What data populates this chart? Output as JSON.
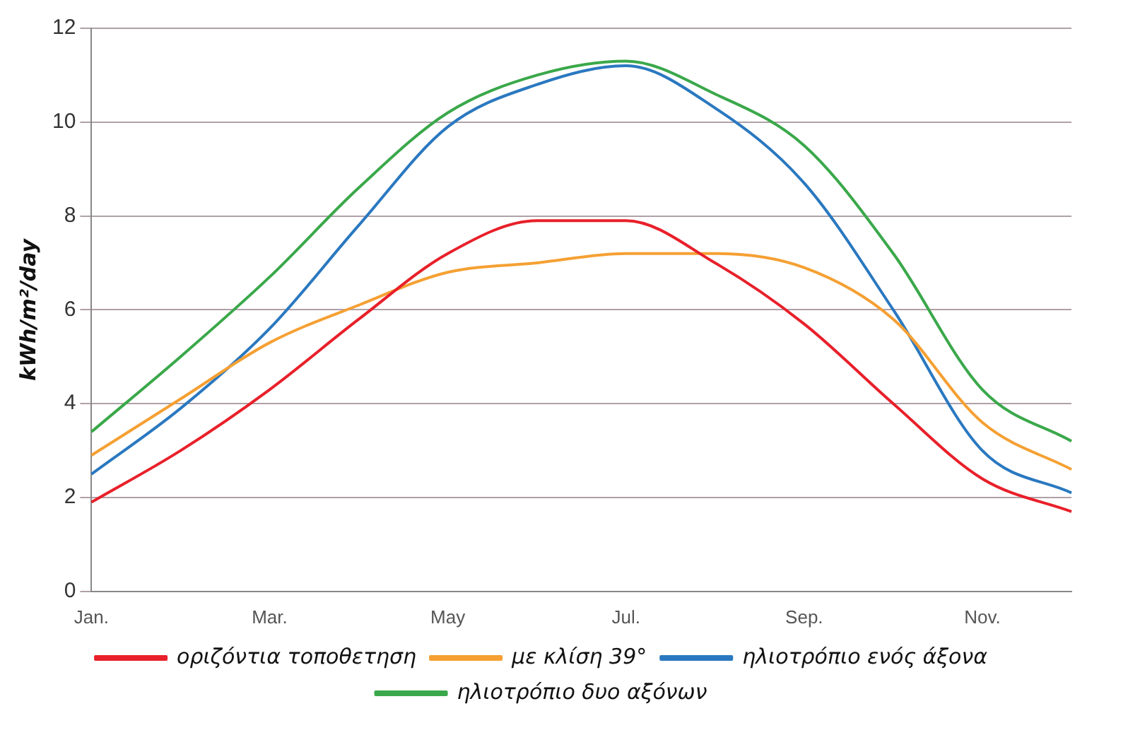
{
  "chart_data": {
    "type": "line",
    "ylabel": "kWh/m²/day",
    "categories": [
      "Jan.",
      null,
      "Mar.",
      null,
      "May",
      null,
      "Jul.",
      null,
      "Sep.",
      null,
      "Nov.",
      null
    ],
    "series": [
      {
        "name": "οριζόντια τοποθετηση",
        "color": "#e8202a",
        "values": [
          1.9,
          3.0,
          4.3,
          5.8,
          7.2,
          7.9,
          7.9,
          7.0,
          5.7,
          4.0,
          2.4,
          1.7
        ]
      },
      {
        "name": "με κλίση 39°",
        "color": "#f5a033",
        "values": [
          2.9,
          4.1,
          5.3,
          6.1,
          6.8,
          7.0,
          7.2,
          7.2,
          6.9,
          5.8,
          3.6,
          2.6
        ]
      },
      {
        "name": "ηλιοτρόπιο ενός άξονα",
        "color": "#2a78c0",
        "values": [
          2.5,
          3.9,
          5.6,
          7.8,
          9.9,
          10.8,
          11.2,
          10.3,
          8.7,
          6.0,
          3.0,
          2.1
        ]
      },
      {
        "name": "ηλιοτρόπιο δυο αξόνων",
        "color": "#3aa84a",
        "values": [
          3.4,
          5.0,
          6.7,
          8.6,
          10.2,
          11.0,
          11.3,
          10.6,
          9.5,
          7.2,
          4.3,
          3.2
        ]
      }
    ],
    "ylim": [
      0,
      12
    ],
    "yticks": [
      0,
      2,
      4,
      6,
      8,
      10,
      12
    ],
    "grid": "y",
    "legend": "bottom",
    "marker": "none",
    "line_style": "solid"
  }
}
